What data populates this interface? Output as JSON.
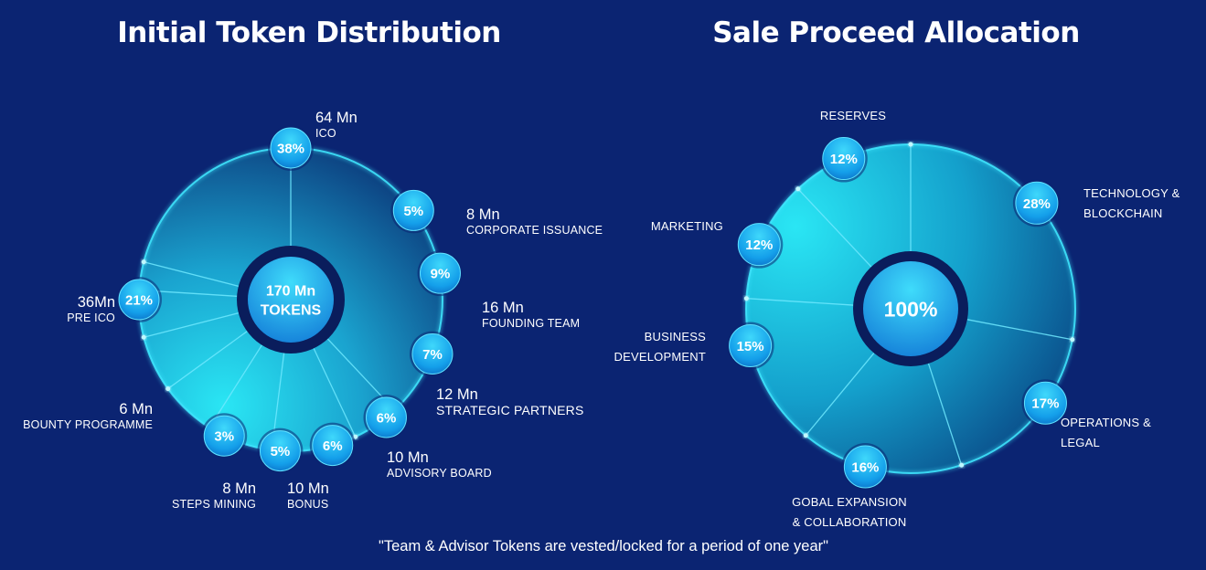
{
  "titles": {
    "left": "Initial Token Distribution",
    "right": "Sale Proceed Allocation"
  },
  "footnote": "\"Team & Advisor Tokens are vested/locked for a period of one year\"",
  "colors": {
    "background": "#0b2472",
    "pie_light": "#27e3f2",
    "pie_dark": "#0a3f7d",
    "bubble": "#1aa8f0",
    "ring": "#0a1d5c"
  },
  "chart_data": [
    {
      "type": "pie",
      "title": "Initial Token Distribution",
      "center_label": [
        "170 Mn",
        "TOKENS"
      ],
      "slices": [
        {
          "percent": "38%",
          "amount": "64 Mn",
          "name": "ICO",
          "value": 38
        },
        {
          "percent": "5%",
          "amount": "8 Mn",
          "name": "CORPORATE ISSUANCE",
          "value": 5
        },
        {
          "percent": "9%",
          "amount": "16 Mn",
          "name": "FOUNDING TEAM",
          "value": 9
        },
        {
          "percent": "7%",
          "amount": "12 Mn",
          "name": "STRATEGIC PARTNERS",
          "value": 7
        },
        {
          "percent": "6%",
          "amount": "10 Mn",
          "name": "ADVISORY BOARD",
          "value": 6
        },
        {
          "percent": "6%",
          "amount": "10 Mn",
          "name": "BONUS",
          "value": 6
        },
        {
          "percent": "5%",
          "amount": "8 Mn",
          "name": "STEPS MINING",
          "value": 5
        },
        {
          "percent": "3%",
          "amount": "6 Mn",
          "name": "BOUNTY PROGRAMME",
          "value": 3
        },
        {
          "percent": "21%",
          "amount": "36Mn",
          "name": "PRE ICO",
          "value": 21
        }
      ]
    },
    {
      "type": "pie",
      "title": "Sale Proceed Allocation",
      "center_label": [
        "100%"
      ],
      "slices": [
        {
          "percent": "28%",
          "name": [
            "TECHNOLOGY &",
            "BLOCKCHAIN"
          ],
          "value": 28
        },
        {
          "percent": "17%",
          "name": [
            "OPERATIONS &",
            "LEGAL"
          ],
          "value": 17
        },
        {
          "percent": "16%",
          "name": [
            "GOBAL EXPANSION",
            "& COLLABORATION"
          ],
          "value": 16
        },
        {
          "percent": "15%",
          "name": [
            "BUSINESS",
            "DEVELOPMENT"
          ],
          "value": 15
        },
        {
          "percent": "12%",
          "name": [
            "MARKETING"
          ],
          "value": 12
        },
        {
          "percent": "12%",
          "name": [
            "RESERVES"
          ],
          "value": 12
        }
      ]
    }
  ]
}
